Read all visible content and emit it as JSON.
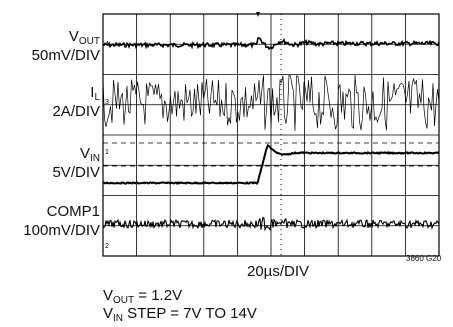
{
  "chart_data": {
    "type": "line",
    "title": "",
    "xlabel": "20µs/DIV",
    "figure_code": "3860 G20",
    "grid": true,
    "x_divisions": 10,
    "y_divisions": 8,
    "series": [
      {
        "name": "VOUT",
        "name_main": "V",
        "name_sub": "OUT",
        "scale": "50mV/DIV",
        "marker": "4",
        "kind": "noisy_with_transient",
        "color": "#000000"
      },
      {
        "name": "IL",
        "name_main": "I",
        "name_sub": "L",
        "scale": "2A/DIV",
        "marker": "3",
        "kind": "switching_ripple",
        "color": "#000000"
      },
      {
        "name": "VIN",
        "name_main": "V",
        "name_sub": "IN",
        "scale": "5V/DIV",
        "marker": "1",
        "kind": "step",
        "step": "7V TO 14V",
        "color": "#000000"
      },
      {
        "name": "COMP1",
        "name_main": "COMP1",
        "name_sub": "",
        "scale": "100mV/DIV",
        "marker": "2",
        "kind": "noisy_with_transient",
        "color": "#000000"
      }
    ],
    "notes": [
      {
        "main": "V",
        "sub": "OUT",
        "rest": " = 1.2V"
      },
      {
        "main": "V",
        "sub": "IN",
        "rest": " STEP = 7V TO 14V"
      }
    ]
  }
}
